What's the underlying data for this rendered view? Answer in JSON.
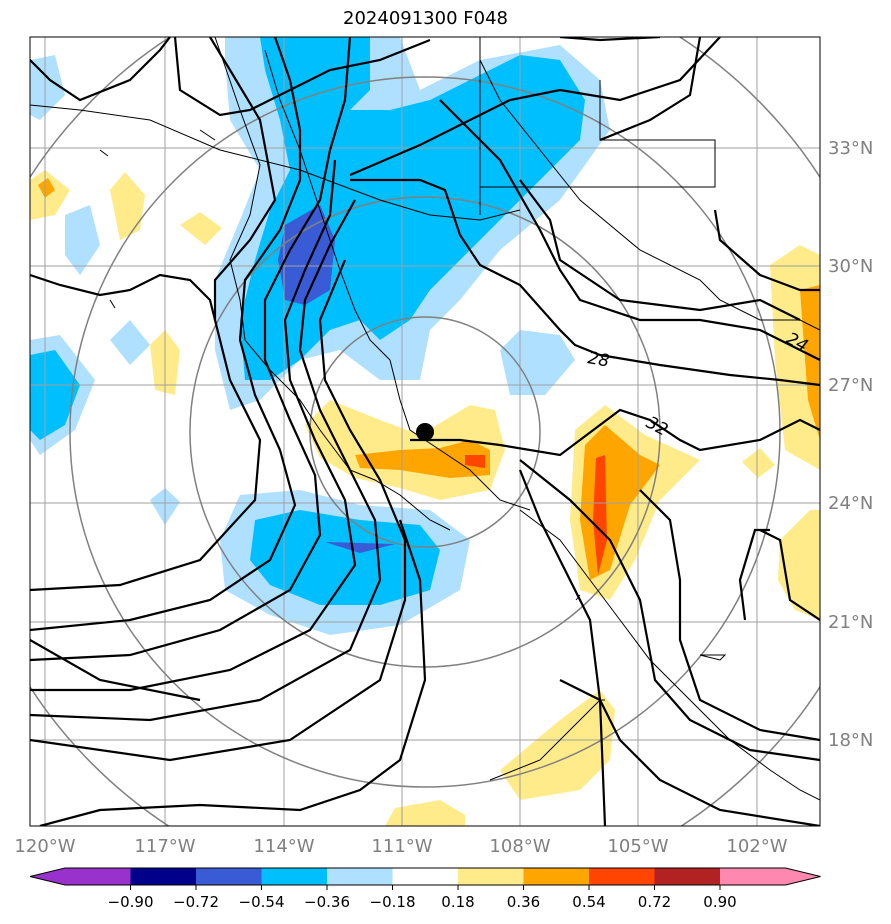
{
  "title": "2024091300 F048",
  "colors": {
    "grid": "#a0a0a0",
    "ring": "#808080",
    "coast": "#000000",
    "contour": "#000000",
    "tick_text": "#808080"
  },
  "map": {
    "lon_range": [
      -121,
      -100.5
    ],
    "lat_range": [
      15.5,
      35.5
    ],
    "lat_ticks": [
      "33°N",
      "30°N",
      "27°N",
      "24°N",
      "21°N",
      "18°N"
    ],
    "lon_ticks": [
      "120°W",
      "117°W",
      "114°W",
      "111°W",
      "108°W",
      "105°W",
      "102°W"
    ],
    "center_marker": "storm-center-dot",
    "contour_labels": [
      "24",
      "28",
      "32"
    ]
  },
  "colorbar": {
    "levels": [
      "−0.90",
      "−0.72",
      "−0.54",
      "−0.36",
      "−0.18",
      "0.18",
      "0.36",
      "0.54",
      "0.72",
      "0.90"
    ],
    "colors": [
      "#9932cc",
      "#00008b",
      "#3a5bd6",
      "#00bfff",
      "#b0e0ff",
      "#ffffff",
      "#ffeb8a",
      "#ffa500",
      "#ff4500",
      "#b22222",
      "#ff88b0"
    ],
    "extend": "both"
  }
}
